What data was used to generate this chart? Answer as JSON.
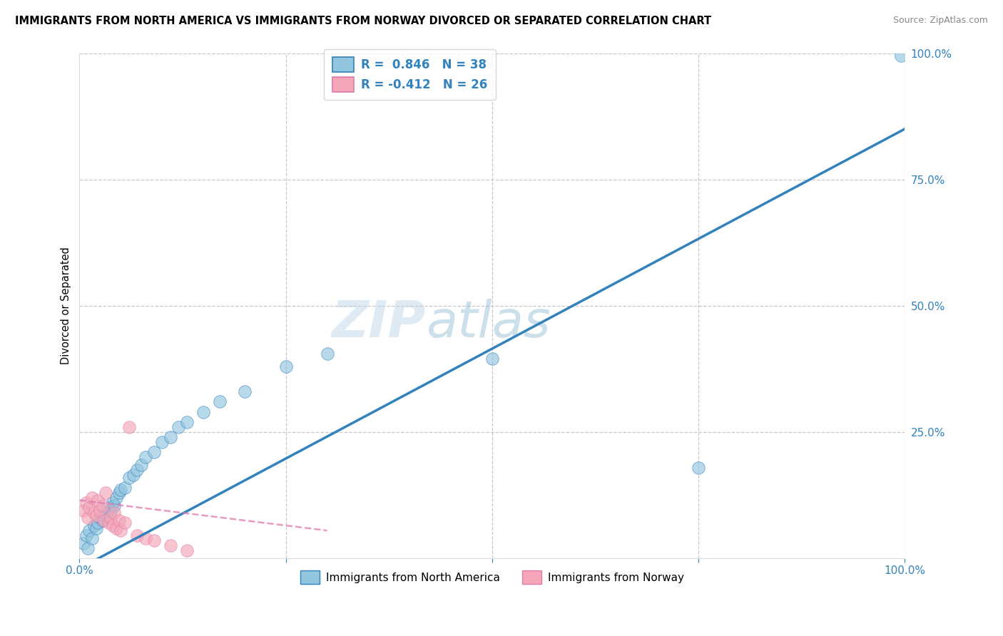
{
  "title": "IMMIGRANTS FROM NORTH AMERICA VS IMMIGRANTS FROM NORWAY DIVORCED OR SEPARATED CORRELATION CHART",
  "source": "Source: ZipAtlas.com",
  "ylabel_label": "Divorced or Separated",
  "legend_blue_label": "R =  0.846   N = 38",
  "legend_pink_label": "R = -0.412   N = 26",
  "legend_bottom_blue": "Immigrants from North America",
  "legend_bottom_pink": "Immigrants from Norway",
  "blue_color": "#92c5de",
  "pink_color": "#f4a6b8",
  "blue_line_color": "#3182bd",
  "pink_line_color": "#de7aaa",
  "watermark_zip": "ZIP",
  "watermark_atlas": "atlas",
  "blue_scatter_x": [
    0.005,
    0.008,
    0.01,
    0.012,
    0.015,
    0.018,
    0.02,
    0.022,
    0.025,
    0.028,
    0.03,
    0.032,
    0.035,
    0.038,
    0.04,
    0.042,
    0.045,
    0.048,
    0.05,
    0.055,
    0.06,
    0.065,
    0.07,
    0.075,
    0.08,
    0.09,
    0.1,
    0.11,
    0.12,
    0.13,
    0.15,
    0.17,
    0.2,
    0.25,
    0.5,
    0.75,
    0.995,
    0.3
  ],
  "blue_scatter_y": [
    0.03,
    0.045,
    0.02,
    0.055,
    0.04,
    0.065,
    0.06,
    0.07,
    0.08,
    0.075,
    0.09,
    0.085,
    0.1,
    0.095,
    0.11,
    0.105,
    0.12,
    0.13,
    0.135,
    0.14,
    0.16,
    0.165,
    0.175,
    0.185,
    0.2,
    0.21,
    0.23,
    0.24,
    0.26,
    0.27,
    0.29,
    0.31,
    0.33,
    0.38,
    0.395,
    0.18,
    0.995,
    0.405
  ],
  "pink_scatter_x": [
    0.005,
    0.008,
    0.01,
    0.012,
    0.015,
    0.018,
    0.02,
    0.022,
    0.025,
    0.028,
    0.03,
    0.032,
    0.035,
    0.038,
    0.04,
    0.042,
    0.045,
    0.048,
    0.05,
    0.055,
    0.06,
    0.07,
    0.08,
    0.09,
    0.11,
    0.13
  ],
  "pink_scatter_y": [
    0.095,
    0.11,
    0.08,
    0.1,
    0.12,
    0.09,
    0.085,
    0.115,
    0.095,
    0.105,
    0.075,
    0.13,
    0.07,
    0.08,
    0.065,
    0.09,
    0.06,
    0.075,
    0.055,
    0.07,
    0.26,
    0.045,
    0.04,
    0.035,
    0.025,
    0.015
  ],
  "blue_line_x0": 0.0,
  "blue_line_y0": -0.02,
  "blue_line_x1": 1.0,
  "blue_line_y1": 0.85,
  "pink_line_x0": 0.0,
  "pink_line_y0": 0.115,
  "pink_line_x1": 0.3,
  "pink_line_y1": 0.055,
  "xlim": [
    0.0,
    1.0
  ],
  "ylim": [
    0.0,
    1.0
  ]
}
